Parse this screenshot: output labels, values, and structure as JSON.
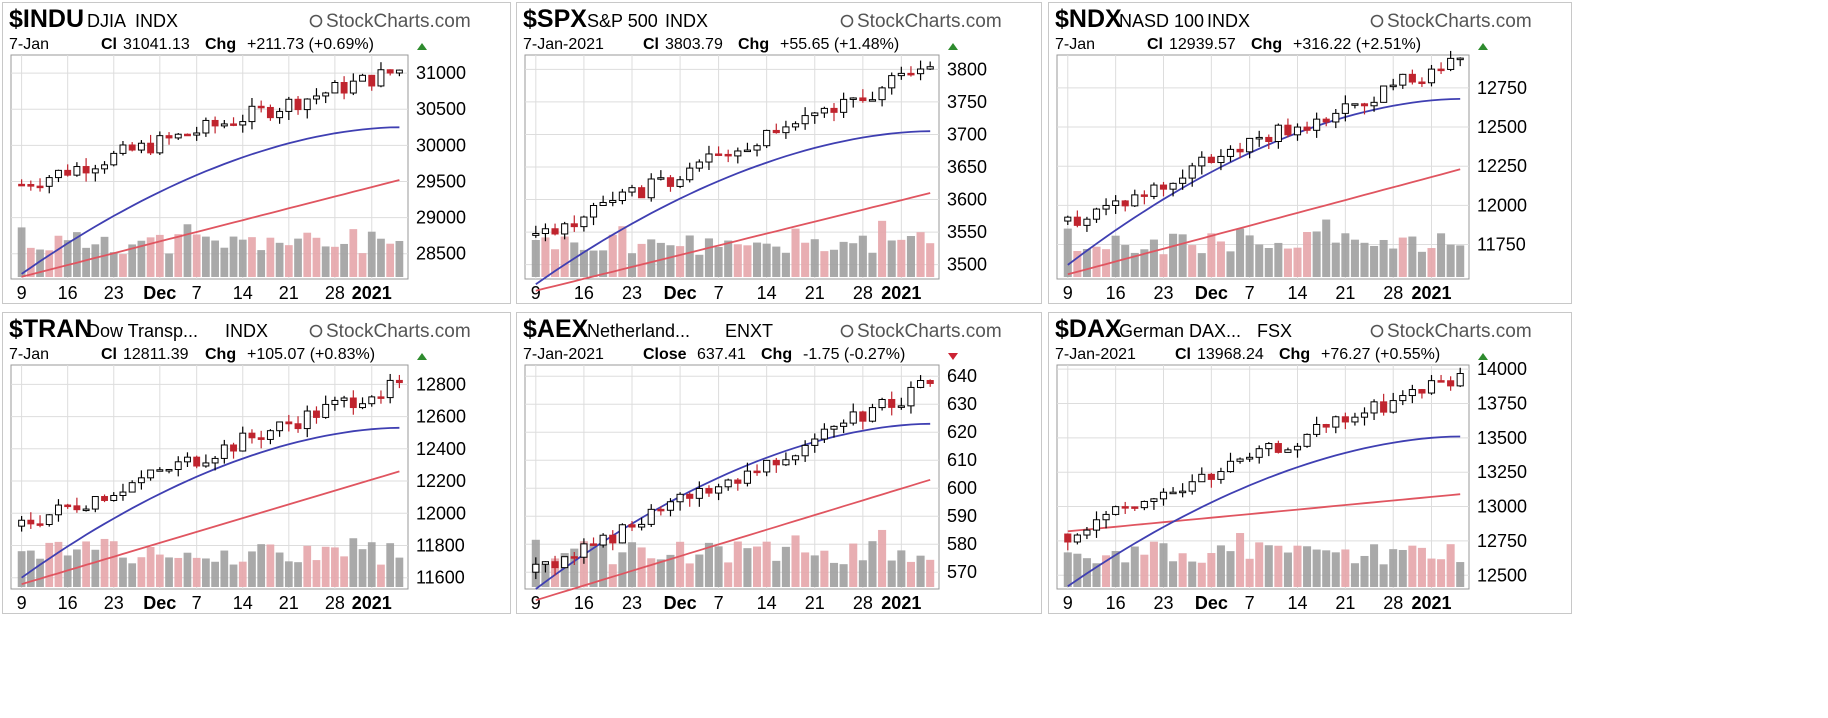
{
  "colors": {
    "up": "#ffffff",
    "down": "#c0242e",
    "ma_fast": "#3f3fb2",
    "ma_slow": "#e05560",
    "vol_up": "#a0a0a0",
    "vol_down": "#e6a5aa",
    "grid": "#dddddd",
    "arrow_up": "#2e8b2e",
    "arrow_down": "#cc2233"
  },
  "watermark": "StockCharts.com",
  "chart_data": [
    {
      "type": "candlestick",
      "symbol": "$INDU",
      "name": "DJIA",
      "exchange": "INDX",
      "date": "7-Jan",
      "close_label": "Cl",
      "close": "31041.13",
      "chg_label": "Chg",
      "change": "+211.73 (+0.69%)",
      "direction": "up",
      "yticks": [
        "31000",
        "30500",
        "30000",
        "29500",
        "29000",
        "28500"
      ],
      "ylim": [
        28150,
        31250
      ],
      "xticks": [
        "9",
        "16",
        "23",
        "Dec",
        "7",
        "14",
        "21",
        "28",
        "2021"
      ],
      "xbold": [
        "Dec",
        "2021"
      ],
      "n": 42,
      "open": 29460,
      "close_value": 31041,
      "ma_fast_start": 28220,
      "ma_fast_end": 30250,
      "ma_slow_start": 28180,
      "ma_slow_end": 29520
    },
    {
      "type": "candlestick",
      "symbol": "$SPX",
      "name": "S&P 500",
      "exchange": "INDX",
      "date": "7-Jan-2021",
      "close_label": "Cl",
      "close": "3803.79",
      "chg_label": "Chg",
      "change": "+55.65 (+1.48%)",
      "direction": "up",
      "yticks": [
        "3800",
        "3750",
        "3700",
        "3650",
        "3600",
        "3550",
        "3500"
      ],
      "ylim": [
        3478,
        3822
      ],
      "xticks": [
        "9",
        "16",
        "23",
        "Dec",
        "7",
        "14",
        "21",
        "28",
        "2021"
      ],
      "xbold": [
        "Dec",
        "2021"
      ],
      "n": 42,
      "open": 3545,
      "close_value": 3804,
      "ma_fast_start": 3470,
      "ma_fast_end": 3705,
      "ma_slow_start": 3460,
      "ma_slow_end": 3610
    },
    {
      "type": "candlestick",
      "symbol": "$NDX",
      "name": "NASD 100",
      "exchange": "INDX",
      "date": "7-Jan",
      "close_label": "Cl",
      "close": "12939.57",
      "chg_label": "Chg",
      "change": "+316.22 (+2.51%)",
      "direction": "up",
      "yticks": [
        "12750",
        "12500",
        "12250",
        "12000",
        "11750"
      ],
      "ylim": [
        11530,
        12960
      ],
      "xticks": [
        "9",
        "16",
        "23",
        "Dec",
        "7",
        "14",
        "21",
        "28",
        "2021"
      ],
      "xbold": [
        "Dec",
        "2021"
      ],
      "n": 42,
      "open": 11900,
      "close_value": 12940,
      "ma_fast_start": 11620,
      "ma_fast_end": 12680,
      "ma_slow_start": 11560,
      "ma_slow_end": 12230
    },
    {
      "type": "candlestick",
      "symbol": "$TRAN",
      "name": "Dow Transp...",
      "exchange": "INDX",
      "date": "7-Jan",
      "close_label": "Cl",
      "close": "12811.39",
      "chg_label": "Chg",
      "change": "+105.07 (+0.83%)",
      "direction": "up",
      "yticks": [
        "12800",
        "12600",
        "12400",
        "12200",
        "12000",
        "11800",
        "11600"
      ],
      "ylim": [
        11530,
        12920
      ],
      "xticks": [
        "9",
        "16",
        "23",
        "Dec",
        "7",
        "14",
        "21",
        "28",
        "2021"
      ],
      "xbold": [
        "Dec",
        "2021"
      ],
      "n": 42,
      "open": 11920,
      "close_value": 12811,
      "ma_fast_start": 11600,
      "ma_fast_end": 12530,
      "ma_slow_start": 11560,
      "ma_slow_end": 12260
    },
    {
      "type": "candlestick",
      "symbol": "$AEX",
      "name": "Netherland...",
      "exchange": "ENXT",
      "date": "7-Jan-2021",
      "close_label": "Close",
      "close": "637.41",
      "chg_label": "Chg",
      "change": "-1.75 (-0.27%)",
      "direction": "down",
      "yticks": [
        "640",
        "630",
        "620",
        "610",
        "600",
        "590",
        "580",
        "570"
      ],
      "ylim": [
        564,
        644
      ],
      "xticks": [
        "9",
        "16",
        "23",
        "Dec",
        "7",
        "14",
        "21",
        "28",
        "2021"
      ],
      "xbold": [
        "Dec",
        "2021"
      ],
      "n": 42,
      "open": 570,
      "close_value": 637.4,
      "ma_fast_start": 564,
      "ma_fast_end": 623,
      "ma_slow_start": 560,
      "ma_slow_end": 603
    },
    {
      "type": "candlestick",
      "symbol": "$DAX",
      "name": "German DAX...",
      "exchange": "FSX",
      "date": "7-Jan-2021",
      "close_label": "Cl",
      "close": "13968.24",
      "chg_label": "Chg",
      "change": "+76.27 (+0.55%)",
      "direction": "up",
      "yticks": [
        "14000",
        "13750",
        "13500",
        "13250",
        "13000",
        "12750",
        "12500"
      ],
      "ylim": [
        12400,
        14030
      ],
      "xticks": [
        "9",
        "16",
        "23",
        "Dec",
        "7",
        "14",
        "21",
        "28",
        "2021"
      ],
      "xbold": [
        "Dec",
        "2021"
      ],
      "n": 42,
      "open": 12800,
      "close_value": 13968,
      "ma_fast_start": 12420,
      "ma_fast_end": 13510,
      "ma_slow_start": 12820,
      "ma_slow_end": 13090
    }
  ]
}
